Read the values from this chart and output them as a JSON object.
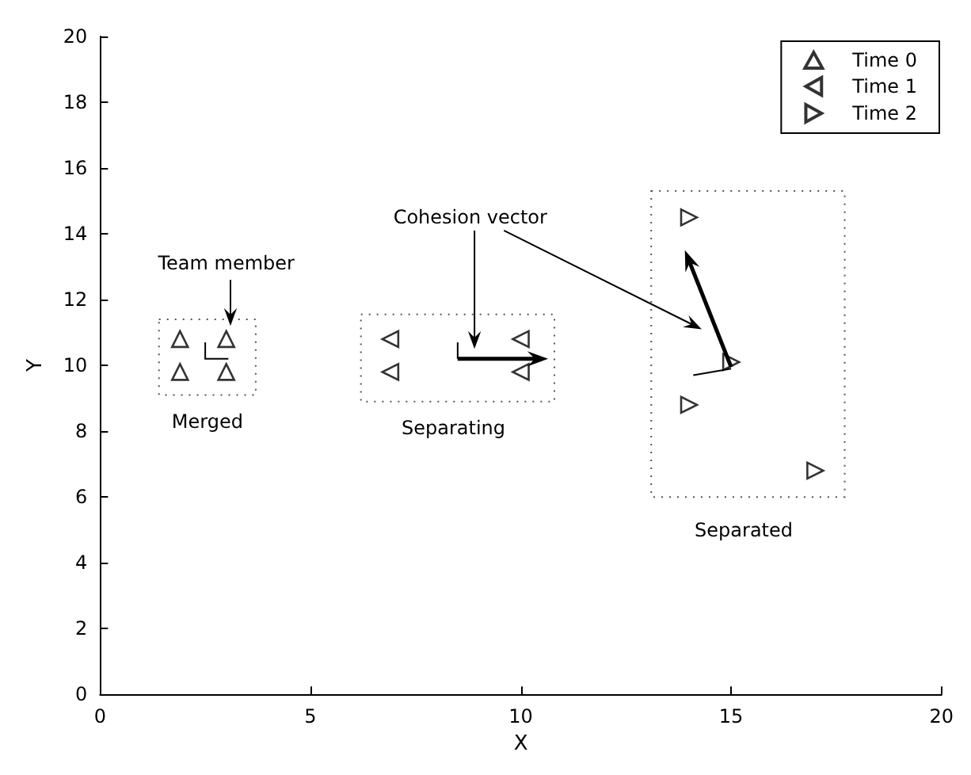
{
  "chart_data": {
    "type": "scatter",
    "xlabel": "X",
    "ylabel": "Y",
    "xlim": [
      0,
      20
    ],
    "ylim": [
      0,
      20
    ],
    "xticks": [
      0,
      5,
      10,
      15,
      20
    ],
    "yticks": [
      0,
      2,
      4,
      6,
      8,
      10,
      12,
      14,
      16,
      18,
      20
    ],
    "grid": false,
    "legend": "top right",
    "marker": "triangle",
    "series": [
      {
        "name": "Time 0",
        "color": "#000000",
        "x": [
          1.9,
          3.0,
          1.9,
          3.0
        ],
        "values": [
          10.8,
          10.8,
          9.8,
          9.8
        ]
      },
      {
        "name": "Time 1",
        "color": "#000000",
        "x": [
          6.9,
          6.9,
          10.0,
          10.0
        ],
        "values": [
          10.8,
          9.8,
          10.8,
          9.8
        ]
      },
      {
        "name": "Time 2",
        "color": "#000000",
        "x": [
          14.0,
          15.0,
          14.0,
          17.0
        ],
        "values": [
          14.5,
          10.1,
          8.8,
          6.8
        ]
      }
    ],
    "annotations": [
      "Team member",
      "Merged",
      "Separating",
      "Separated",
      "Cohesion vector"
    ]
  }
}
